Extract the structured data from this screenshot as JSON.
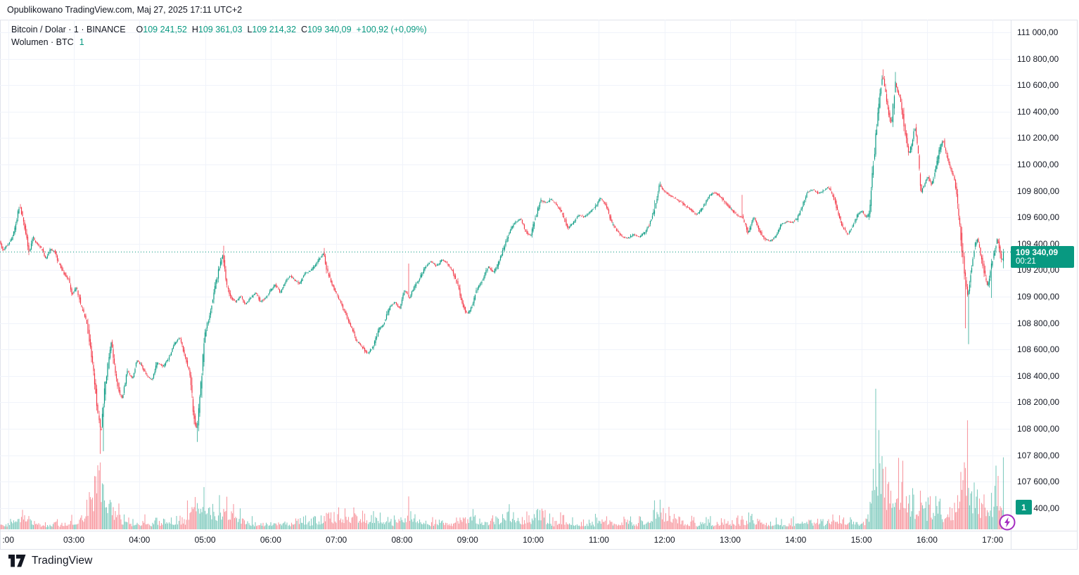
{
  "published_line": "Opublikowano TradingView.com, Maj 27, 2025 17:11 UTC+2",
  "legend": {
    "symbol_title": "Bitcoin / Dolar · 1 · BINANCE",
    "o_label": "O",
    "o": "109 241,52",
    "h_label": "H",
    "h": "109 361,03",
    "l_label": "L",
    "l": "109 214,32",
    "c_label": "C",
    "c": "109 340,09",
    "change": "+100,92 (+0,09%)",
    "volume_title": "Wolumen · BTC",
    "volume_value": "1"
  },
  "price_axis": {
    "labels": [
      "111 000,00",
      "110 800,00",
      "110 600,00",
      "110 400,00",
      "110 200,00",
      "110 000,00",
      "109 800,00",
      "109 600,00",
      "109 400,00",
      "109 200,00",
      "109 000,00",
      "108 800,00",
      "108 600,00",
      "108 400,00",
      "108 200,00",
      "108 000,00",
      "107 800,00",
      "107 600,00",
      "107 400,00"
    ],
    "values": [
      111000,
      110800,
      110600,
      110400,
      110200,
      110000,
      109800,
      109600,
      109400,
      109200,
      109000,
      108800,
      108600,
      108400,
      108200,
      108000,
      107800,
      107600,
      107400
    ],
    "badge_price": "109 340,09",
    "badge_countdown": "00:21",
    "volume_badge": "1"
  },
  "time_axis": {
    "labels": [
      ":00",
      "03:00",
      "04:00",
      "05:00",
      "06:00",
      "07:00",
      "08:00",
      "09:00",
      "10:00",
      "11:00",
      "12:00",
      "13:00",
      "14:00",
      "15:00",
      "16:00",
      "17:00"
    ],
    "hours": [
      2,
      3,
      4,
      5,
      6,
      7,
      8,
      9,
      10,
      11,
      12,
      13,
      14,
      15,
      16,
      17
    ]
  },
  "footer": {
    "logo_text": "TradingView"
  },
  "colors": {
    "up": "#089981",
    "down": "#f23645",
    "vol_up": "rgba(8,153,129,0.5)",
    "vol_down": "rgba(242,54,69,0.5)",
    "grid": "#f0f3fa",
    "axis_text": "#131722",
    "badge": "#089981",
    "flash_purple": "#a42cc0",
    "current_line": "#089981"
  },
  "chart_data": {
    "type": "candlestick+volume",
    "title": "Bitcoin / Dolar · 1 · BINANCE",
    "timeframe_minutes": 1,
    "open": 109241.52,
    "high": 109361.03,
    "low": 109214.32,
    "close": 109340.09,
    "change_text": "+100,92 (+0,09%)",
    "current_price": 109340.09,
    "countdown": "00:21",
    "y_axis": {
      "min": 107400,
      "max": 111000,
      "tick_step": 200
    },
    "x_axis": {
      "start_hour": 1.875,
      "end_hour": 17.185,
      "tick_hours": [
        2,
        3,
        4,
        5,
        6,
        7,
        8,
        9,
        10,
        11,
        12,
        13,
        14,
        15,
        16,
        17
      ]
    },
    "price_path": [
      [
        1.87,
        109420
      ],
      [
        1.93,
        109350
      ],
      [
        2.0,
        109400
      ],
      [
        2.07,
        109440
      ],
      [
        2.13,
        109560
      ],
      [
        2.18,
        109690
      ],
      [
        2.22,
        109610
      ],
      [
        2.27,
        109500
      ],
      [
        2.33,
        109330
      ],
      [
        2.38,
        109450
      ],
      [
        2.45,
        109400
      ],
      [
        2.52,
        109360
      ],
      [
        2.58,
        109280
      ],
      [
        2.65,
        109360
      ],
      [
        2.72,
        109340
      ],
      [
        2.78,
        109250
      ],
      [
        2.85,
        109180
      ],
      [
        2.92,
        109140
      ],
      [
        2.98,
        109010
      ],
      [
        3.05,
        109070
      ],
      [
        3.12,
        108920
      ],
      [
        3.2,
        108820
      ],
      [
        3.27,
        108560
      ],
      [
        3.33,
        108340
      ],
      [
        3.38,
        108090
      ],
      [
        3.42,
        107960
      ],
      [
        3.47,
        108250
      ],
      [
        3.53,
        108500
      ],
      [
        3.58,
        108670
      ],
      [
        3.63,
        108450
      ],
      [
        3.7,
        108270
      ],
      [
        3.75,
        108230
      ],
      [
        3.82,
        108440
      ],
      [
        3.9,
        108380
      ],
      [
        3.97,
        108520
      ],
      [
        4.05,
        108470
      ],
      [
        4.13,
        108390
      ],
      [
        4.2,
        108370
      ],
      [
        4.28,
        108500
      ],
      [
        4.37,
        108470
      ],
      [
        4.45,
        108530
      ],
      [
        4.55,
        108650
      ],
      [
        4.62,
        108690
      ],
      [
        4.7,
        108560
      ],
      [
        4.78,
        108410
      ],
      [
        4.83,
        108120
      ],
      [
        4.88,
        107990
      ],
      [
        4.93,
        108250
      ],
      [
        5.0,
        108700
      ],
      [
        5.07,
        108850
      ],
      [
        5.15,
        109050
      ],
      [
        5.22,
        109220
      ],
      [
        5.28,
        109320
      ],
      [
        5.33,
        109100
      ],
      [
        5.4,
        108990
      ],
      [
        5.48,
        108960
      ],
      [
        5.55,
        109010
      ],
      [
        5.62,
        108940
      ],
      [
        5.7,
        108990
      ],
      [
        5.78,
        109030
      ],
      [
        5.85,
        108960
      ],
      [
        5.93,
        108990
      ],
      [
        6.0,
        109050
      ],
      [
        6.08,
        109090
      ],
      [
        6.15,
        109030
      ],
      [
        6.22,
        109100
      ],
      [
        6.3,
        109160
      ],
      [
        6.38,
        109120
      ],
      [
        6.45,
        109100
      ],
      [
        6.53,
        109180
      ],
      [
        6.6,
        109190
      ],
      [
        6.68,
        109230
      ],
      [
        6.75,
        109290
      ],
      [
        6.81,
        109330
      ],
      [
        6.87,
        109190
      ],
      [
        6.93,
        109110
      ],
      [
        7.0,
        109030
      ],
      [
        7.08,
        108950
      ],
      [
        7.17,
        108840
      ],
      [
        7.25,
        108750
      ],
      [
        7.32,
        108660
      ],
      [
        7.4,
        108620
      ],
      [
        7.48,
        108570
      ],
      [
        7.57,
        108620
      ],
      [
        7.65,
        108750
      ],
      [
        7.73,
        108790
      ],
      [
        7.82,
        108920
      ],
      [
        7.9,
        108960
      ],
      [
        7.97,
        108910
      ],
      [
        8.05,
        109050
      ],
      [
        8.12,
        108990
      ],
      [
        8.2,
        109080
      ],
      [
        8.28,
        109140
      ],
      [
        8.37,
        109230
      ],
      [
        8.45,
        109270
      ],
      [
        8.53,
        109230
      ],
      [
        8.62,
        109280
      ],
      [
        8.7,
        109250
      ],
      [
        8.78,
        109190
      ],
      [
        8.85,
        109100
      ],
      [
        8.93,
        108940
      ],
      [
        9.0,
        108870
      ],
      [
        9.07,
        108920
      ],
      [
        9.15,
        109060
      ],
      [
        9.23,
        109120
      ],
      [
        9.32,
        109230
      ],
      [
        9.4,
        109180
      ],
      [
        9.48,
        109260
      ],
      [
        9.56,
        109370
      ],
      [
        9.65,
        109500
      ],
      [
        9.73,
        109560
      ],
      [
        9.82,
        109590
      ],
      [
        9.9,
        109480
      ],
      [
        9.97,
        109460
      ],
      [
        10.05,
        109620
      ],
      [
        10.12,
        109730
      ],
      [
        10.2,
        109710
      ],
      [
        10.28,
        109740
      ],
      [
        10.37,
        109690
      ],
      [
        10.45,
        109630
      ],
      [
        10.53,
        109520
      ],
      [
        10.62,
        109560
      ],
      [
        10.7,
        109620
      ],
      [
        10.78,
        109600
      ],
      [
        10.87,
        109640
      ],
      [
        10.95,
        109680
      ],
      [
        11.03,
        109750
      ],
      [
        11.12,
        109690
      ],
      [
        11.2,
        109560
      ],
      [
        11.28,
        109500
      ],
      [
        11.37,
        109450
      ],
      [
        11.45,
        109440
      ],
      [
        11.53,
        109470
      ],
      [
        11.62,
        109450
      ],
      [
        11.7,
        109480
      ],
      [
        11.78,
        109550
      ],
      [
        11.87,
        109680
      ],
      [
        11.93,
        109850
      ],
      [
        12.0,
        109800
      ],
      [
        12.1,
        109760
      ],
      [
        12.22,
        109730
      ],
      [
        12.3,
        109700
      ],
      [
        12.4,
        109660
      ],
      [
        12.5,
        109620
      ],
      [
        12.6,
        109680
      ],
      [
        12.68,
        109760
      ],
      [
        12.77,
        109790
      ],
      [
        12.87,
        109750
      ],
      [
        12.95,
        109700
      ],
      [
        13.03,
        109660
      ],
      [
        13.12,
        109610
      ],
      [
        13.2,
        109600
      ],
      [
        13.28,
        109480
      ],
      [
        13.37,
        109600
      ],
      [
        13.45,
        109500
      ],
      [
        13.53,
        109440
      ],
      [
        13.62,
        109420
      ],
      [
        13.7,
        109460
      ],
      [
        13.78,
        109540
      ],
      [
        13.87,
        109570
      ],
      [
        13.95,
        109560
      ],
      [
        14.03,
        109590
      ],
      [
        14.1,
        109680
      ],
      [
        14.18,
        109790
      ],
      [
        14.27,
        109810
      ],
      [
        14.35,
        109780
      ],
      [
        14.43,
        109800
      ],
      [
        14.5,
        109830
      ],
      [
        14.58,
        109760
      ],
      [
        14.65,
        109640
      ],
      [
        14.72,
        109530
      ],
      [
        14.8,
        109470
      ],
      [
        14.88,
        109540
      ],
      [
        14.95,
        109620
      ],
      [
        15.02,
        109650
      ],
      [
        15.08,
        109600
      ],
      [
        15.13,
        109630
      ],
      [
        15.18,
        109940
      ],
      [
        15.23,
        110240
      ],
      [
        15.28,
        110480
      ],
      [
        15.33,
        110680
      ],
      [
        15.37,
        110560
      ],
      [
        15.42,
        110400
      ],
      [
        15.47,
        110300
      ],
      [
        15.52,
        110620
      ],
      [
        15.57,
        110540
      ],
      [
        15.62,
        110450
      ],
      [
        15.68,
        110220
      ],
      [
        15.73,
        110070
      ],
      [
        15.78,
        110160
      ],
      [
        15.82,
        110290
      ],
      [
        15.87,
        110100
      ],
      [
        15.92,
        109780
      ],
      [
        15.97,
        109860
      ],
      [
        16.02,
        109910
      ],
      [
        16.08,
        109840
      ],
      [
        16.13,
        109950
      ],
      [
        16.2,
        110110
      ],
      [
        16.25,
        110190
      ],
      [
        16.3,
        110080
      ],
      [
        16.37,
        109970
      ],
      [
        16.43,
        109890
      ],
      [
        16.48,
        109660
      ],
      [
        16.53,
        109430
      ],
      [
        16.58,
        109170
      ],
      [
        16.63,
        109000
      ],
      [
        16.68,
        109190
      ],
      [
        16.73,
        109380
      ],
      [
        16.78,
        109440
      ],
      [
        16.83,
        109310
      ],
      [
        16.88,
        109180
      ],
      [
        16.93,
        109070
      ],
      [
        16.98,
        109210
      ],
      [
        17.03,
        109340
      ],
      [
        17.08,
        109440
      ],
      [
        17.12,
        109330
      ],
      [
        17.15,
        109260
      ],
      [
        17.183,
        109340
      ]
    ],
    "spikes": [
      [
        2.18,
        109700,
        "h"
      ],
      [
        3.4,
        107810,
        "l"
      ],
      [
        3.45,
        107830,
        "l"
      ],
      [
        4.88,
        107900,
        "l"
      ],
      [
        5.28,
        109385,
        "h"
      ],
      [
        6.81,
        109368,
        "h"
      ],
      [
        8.1,
        109250,
        "h"
      ],
      [
        11.85,
        109730,
        "h"
      ],
      [
        11.93,
        109870,
        "h"
      ],
      [
        13.18,
        109770,
        "h"
      ],
      [
        15.33,
        110720,
        "h"
      ],
      [
        15.52,
        110700,
        "h"
      ],
      [
        16.58,
        108760,
        "l"
      ],
      [
        16.63,
        108640,
        "l"
      ],
      [
        16.98,
        108990,
        "l"
      ],
      [
        17.17,
        109214,
        "l"
      ]
    ],
    "volume_path": [
      [
        1.87,
        6
      ],
      [
        2.1,
        14
      ],
      [
        2.2,
        22
      ],
      [
        2.35,
        10
      ],
      [
        2.6,
        6
      ],
      [
        2.9,
        8
      ],
      [
        3.1,
        18
      ],
      [
        3.25,
        40
      ],
      [
        3.35,
        88
      ],
      [
        3.42,
        80
      ],
      [
        3.5,
        45
      ],
      [
        3.6,
        30
      ],
      [
        3.75,
        14
      ],
      [
        3.9,
        10
      ],
      [
        4.1,
        12
      ],
      [
        4.3,
        10
      ],
      [
        4.5,
        14
      ],
      [
        4.7,
        12
      ],
      [
        4.84,
        62
      ],
      [
        4.92,
        40
      ],
      [
        5.05,
        35
      ],
      [
        5.15,
        28
      ],
      [
        5.3,
        32
      ],
      [
        5.5,
        30
      ],
      [
        5.7,
        12
      ],
      [
        5.9,
        10
      ],
      [
        6.1,
        12
      ],
      [
        6.3,
        10
      ],
      [
        6.5,
        14
      ],
      [
        6.7,
        12
      ],
      [
        6.85,
        20
      ],
      [
        7.0,
        25
      ],
      [
        7.2,
        22
      ],
      [
        7.4,
        28
      ],
      [
        7.55,
        20
      ],
      [
        7.7,
        15
      ],
      [
        7.9,
        12
      ],
      [
        8.1,
        28
      ],
      [
        8.3,
        14
      ],
      [
        8.5,
        12
      ],
      [
        8.7,
        10
      ],
      [
        8.9,
        16
      ],
      [
        9.05,
        20
      ],
      [
        9.25,
        12
      ],
      [
        9.5,
        14
      ],
      [
        9.65,
        25
      ],
      [
        9.8,
        18
      ],
      [
        10.0,
        20
      ],
      [
        10.1,
        28
      ],
      [
        10.3,
        12
      ],
      [
        10.5,
        14
      ],
      [
        10.7,
        10
      ],
      [
        10.9,
        12
      ],
      [
        11.1,
        14
      ],
      [
        11.3,
        10
      ],
      [
        11.5,
        12
      ],
      [
        11.7,
        14
      ],
      [
        11.85,
        30
      ],
      [
        11.95,
        32
      ],
      [
        12.1,
        18
      ],
      [
        12.3,
        12
      ],
      [
        12.5,
        10
      ],
      [
        12.7,
        12
      ],
      [
        12.9,
        10
      ],
      [
        13.1,
        12
      ],
      [
        13.3,
        14
      ],
      [
        13.5,
        12
      ],
      [
        13.7,
        10
      ],
      [
        13.9,
        10
      ],
      [
        14.1,
        16
      ],
      [
        14.3,
        12
      ],
      [
        14.5,
        14
      ],
      [
        14.7,
        16
      ],
      [
        14.9,
        12
      ],
      [
        15.05,
        14
      ],
      [
        15.13,
        20
      ],
      [
        15.18,
        180
      ],
      [
        15.23,
        120
      ],
      [
        15.28,
        115
      ],
      [
        15.33,
        90
      ],
      [
        15.4,
        55
      ],
      [
        15.5,
        60
      ],
      [
        15.57,
        88
      ],
      [
        15.65,
        50
      ],
      [
        15.75,
        40
      ],
      [
        15.85,
        45
      ],
      [
        15.95,
        35
      ],
      [
        16.05,
        30
      ],
      [
        16.15,
        35
      ],
      [
        16.25,
        30
      ],
      [
        16.35,
        28
      ],
      [
        16.45,
        40
      ],
      [
        16.55,
        128
      ],
      [
        16.62,
        100
      ],
      [
        16.7,
        60
      ],
      [
        16.8,
        35
      ],
      [
        16.9,
        40
      ],
      [
        17.0,
        45
      ],
      [
        17.05,
        68
      ],
      [
        17.1,
        50
      ],
      [
        17.15,
        88
      ],
      [
        17.183,
        60
      ]
    ]
  }
}
